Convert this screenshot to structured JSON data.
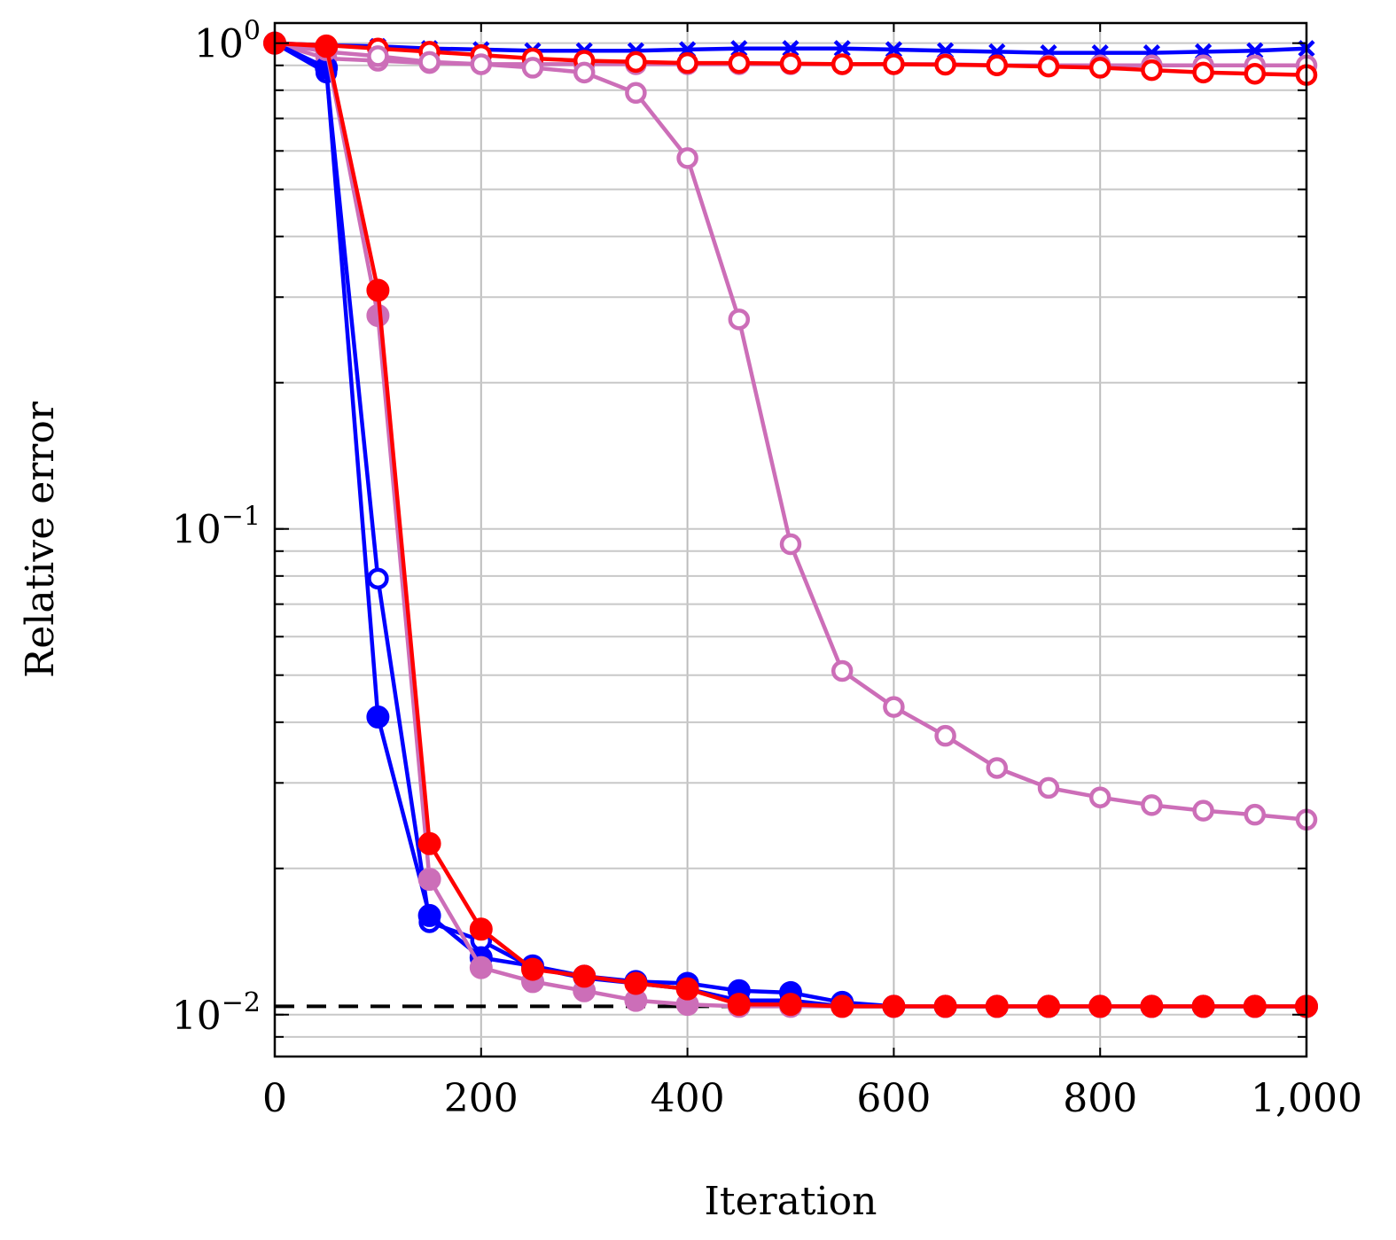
{
  "chart_data": {
    "type": "line",
    "xlabel": "Iteration",
    "ylabel": "Relative error",
    "xlim": [
      0,
      1000
    ],
    "ylim": [
      0.0082,
      1.1
    ],
    "yscale": "log",
    "grid": true,
    "x_ticks": [
      0,
      200,
      400,
      600,
      800,
      1000
    ],
    "x_tick_labels": [
      "0",
      "200",
      "400",
      "600",
      "800",
      "1,000"
    ],
    "y_ticks": [
      {
        "value": 1,
        "base": "10",
        "exp": "0"
      },
      {
        "value": 0.1,
        "base": "10",
        "exp": "−1"
      },
      {
        "value": 0.01,
        "base": "10",
        "exp": "−2"
      }
    ],
    "reference_line": {
      "y": 0.0104,
      "x_range": [
        0,
        600
      ],
      "style": "dashed",
      "color": "#000000"
    },
    "x": [
      0,
      50,
      100,
      150,
      200,
      250,
      300,
      350,
      400,
      450,
      500,
      550,
      600,
      650,
      700,
      750,
      800,
      850,
      900,
      950,
      1000
    ],
    "series": [
      {
        "color": "#0000ff",
        "marker": "cross",
        "values": [
          1.0,
          0.99,
          0.985,
          0.975,
          0.97,
          0.965,
          0.965,
          0.965,
          0.97,
          0.975,
          0.975,
          0.975,
          0.97,
          0.965,
          0.96,
          0.955,
          0.955,
          0.955,
          0.96,
          0.965,
          0.975
        ]
      },
      {
        "color": "#cc6eb8",
        "marker": "open-circle",
        "values": [
          1.0,
          0.93,
          0.92,
          0.91,
          0.905,
          0.905,
          0.905,
          0.905,
          0.905,
          0.905,
          0.905,
          0.905,
          0.905,
          0.905,
          0.9,
          0.9,
          0.9,
          0.9,
          0.9,
          0.9,
          0.9
        ]
      },
      {
        "color": "#ff0000",
        "marker": "open-circle",
        "values": [
          1.0,
          0.99,
          0.975,
          0.96,
          0.945,
          0.93,
          0.92,
          0.915,
          0.91,
          0.91,
          0.908,
          0.905,
          0.905,
          0.903,
          0.9,
          0.895,
          0.89,
          0.88,
          0.87,
          0.865,
          0.86
        ]
      },
      {
        "color": "#cc6eb8",
        "marker": "open-circle",
        "values": [
          1.0,
          0.96,
          0.94,
          0.915,
          0.905,
          0.89,
          0.87,
          0.79,
          0.58,
          0.27,
          0.093,
          0.051,
          0.043,
          0.0375,
          0.0322,
          0.0293,
          0.028,
          0.027,
          0.0263,
          0.0258,
          0.0252
        ]
      },
      {
        "color": "#0000ff",
        "marker": "open-circle",
        "values": [
          1.0,
          0.87,
          0.079,
          0.0155,
          0.0142,
          0.0125,
          0.0119,
          0.0116,
          0.0113,
          0.0107,
          0.0107,
          0.0104,
          0.0104,
          0.0104,
          0.0104,
          0.0104,
          0.0104,
          0.0104,
          0.0104,
          0.0104,
          0.0104
        ]
      },
      {
        "color": "#0000ff",
        "marker": "filled-circle",
        "values": [
          1.0,
          0.89,
          0.041,
          0.016,
          0.0131,
          0.0126,
          0.012,
          0.0117,
          0.0116,
          0.0112,
          0.0111,
          0.0106,
          0.0104,
          0.0104,
          0.0104,
          0.0104,
          0.0104,
          0.0104,
          0.0104,
          0.0104,
          0.0104
        ]
      },
      {
        "color": "#cc6eb8",
        "marker": "filled-circle",
        "values": [
          1.0,
          0.97,
          0.275,
          0.019,
          0.0125,
          0.0117,
          0.0112,
          0.0107,
          0.0105,
          0.0104,
          0.0104,
          0.0104,
          0.0104,
          0.0104,
          0.0104,
          0.0104,
          0.0104,
          0.0104,
          0.0104,
          0.0104,
          0.0104
        ]
      },
      {
        "color": "#ff0000",
        "marker": "filled-circle",
        "values": [
          1.0,
          0.985,
          0.31,
          0.0225,
          0.015,
          0.0124,
          0.012,
          0.0116,
          0.0113,
          0.0105,
          0.0105,
          0.0104,
          0.0104,
          0.0104,
          0.0104,
          0.0104,
          0.0104,
          0.0104,
          0.0104,
          0.0104,
          0.0104
        ]
      }
    ]
  }
}
